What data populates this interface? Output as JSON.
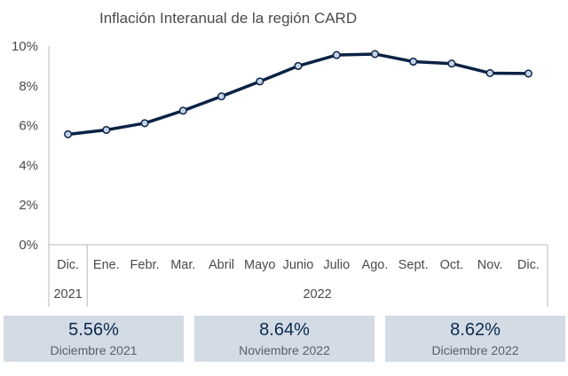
{
  "chart_data": {
    "type": "line",
    "title": "Inflación Interanual de la región CARD",
    "categories": [
      "Dic.",
      "Ene.",
      "Febr.",
      "Mar.",
      "Abril",
      "Mayo",
      "Junio",
      "Julio",
      "Ago.",
      "Sept.",
      "Oct.",
      "Nov.",
      "Dic."
    ],
    "year_groups": [
      {
        "label": "2021",
        "count": 1
      },
      {
        "label": "2022",
        "count": 12
      }
    ],
    "series": [
      {
        "values": [
          5.56,
          5.78,
          6.12,
          6.75,
          7.47,
          8.22,
          9.0,
          9.55,
          9.6,
          9.22,
          9.12,
          8.64,
          8.62
        ]
      }
    ],
    "yticks": [
      "0%",
      "2%",
      "4%",
      "6%",
      "8%",
      "10%"
    ],
    "ylim": [
      0,
      10
    ],
    "ylabel": "",
    "xlabel": "",
    "grid": false,
    "line_color": "#0b2244",
    "marker_fill": "#c5d3ea"
  },
  "cards": [
    {
      "value": "5.56%",
      "label": "Diciembre 2021"
    },
    {
      "value": "8.64%",
      "label": "Noviembre 2022"
    },
    {
      "value": "8.62%",
      "label": "Diciembre 2022"
    }
  ]
}
